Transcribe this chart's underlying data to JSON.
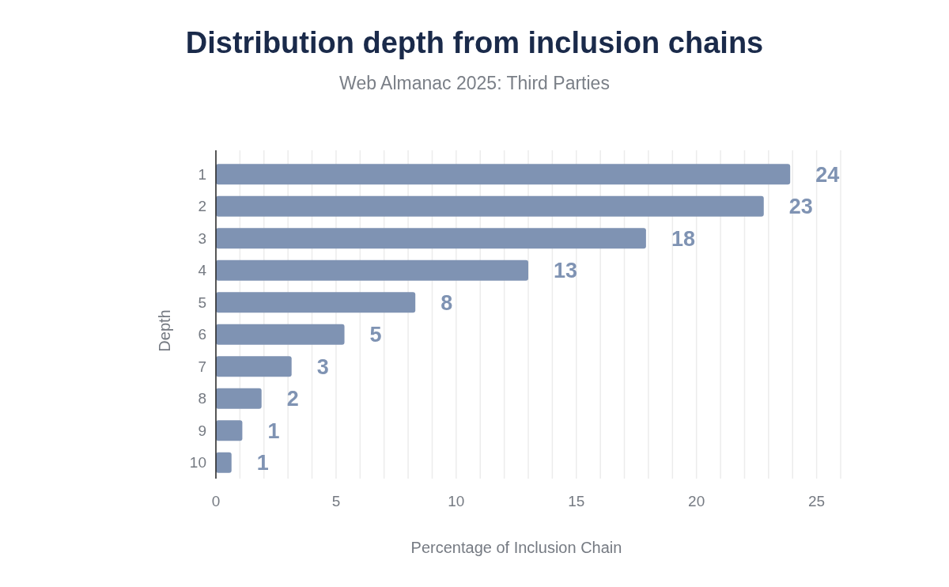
{
  "chart_data": {
    "type": "bar",
    "orientation": "horizontal",
    "title": "Distribution depth from inclusion chains",
    "subtitle": "Web Almanac 2025: Third Parties",
    "xlabel": "Percentage of Inclusion Chain",
    "ylabel": "Depth",
    "categories": [
      "1",
      "2",
      "3",
      "4",
      "5",
      "6",
      "7",
      "8",
      "9",
      "10"
    ],
    "values": [
      23.9,
      22.8,
      17.9,
      13.0,
      8.3,
      5.35,
      3.15,
      1.9,
      1.1,
      0.65
    ],
    "value_labels": [
      "24",
      "23",
      "18",
      "13",
      "8",
      "5",
      "3",
      "2",
      "1",
      "1"
    ],
    "color": "#7f93b3",
    "xlim": [
      0,
      26
    ],
    "xticks": [
      0,
      {
        "value": 1,
        "label": null
      },
      {
        "value": 2,
        "label": null
      },
      {
        "value": 3,
        "label": null
      },
      {
        "value": 4,
        "label": null
      },
      5,
      {
        "value": 6,
        "label": null
      },
      {
        "value": 7,
        "label": null
      },
      {
        "value": 8,
        "label": null
      },
      {
        "value": 9,
        "label": null
      },
      10,
      {
        "value": 11,
        "label": null
      },
      {
        "value": 12,
        "label": null
      },
      {
        "value": 13,
        "label": null
      },
      {
        "value": 14,
        "label": null
      },
      15,
      {
        "value": 16,
        "label": null
      },
      {
        "value": 17,
        "label": null
      },
      {
        "value": 18,
        "label": null
      },
      {
        "value": 19,
        "label": null
      },
      20,
      {
        "value": 21,
        "label": null
      },
      {
        "value": 22,
        "label": null
      },
      {
        "value": 23,
        "label": null
      },
      {
        "value": 24,
        "label": null
      },
      25,
      {
        "value": 26,
        "label": null
      }
    ],
    "grid": "x"
  }
}
